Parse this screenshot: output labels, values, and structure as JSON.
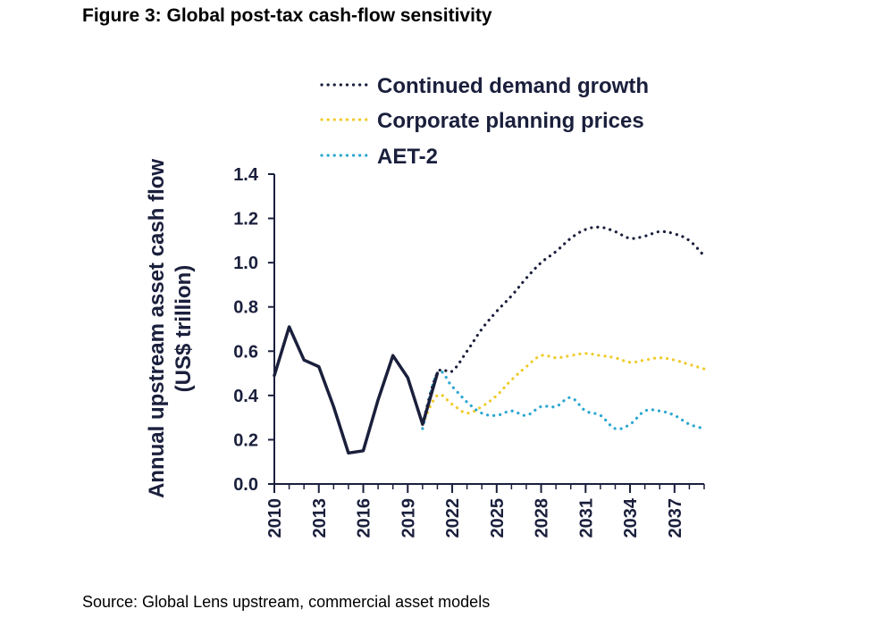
{
  "figure": {
    "title": "Figure 3: Global post-tax cash-flow sensitivity",
    "source": "Source: Global Lens upstream, commercial asset models"
  },
  "chart_data": {
    "type": "line",
    "title": "Figure 3: Global post-tax cash-flow sensitivity",
    "ylabel_line1": "Annual upstream asset cash flow",
    "ylabel_line2": "(US$ trillion)",
    "xlabel": "",
    "ylim": [
      0,
      1.4
    ],
    "xlim": [
      2010,
      2039
    ],
    "y_ticks": [
      "0.0",
      "0.2",
      "0.4",
      "0.6",
      "0.8",
      "1.0",
      "1.2",
      "1.4"
    ],
    "x_ticks": [
      "2010",
      "2013",
      "2016",
      "2019",
      "2022",
      "2025",
      "2028",
      "2031",
      "2034",
      "2037"
    ],
    "legend_position": "top",
    "grid": false,
    "historical": {
      "name": "",
      "color": "#1a1f3c",
      "x": [
        2010,
        2011,
        2012,
        2013,
        2014,
        2015,
        2016,
        2017,
        2018,
        2019,
        2020,
        2021
      ],
      "y": [
        0.49,
        0.71,
        0.56,
        0.53,
        0.35,
        0.14,
        0.15,
        0.38,
        0.58,
        0.48,
        0.27,
        0.5
      ]
    },
    "series": [
      {
        "name": "Continued demand growth",
        "color": "#1a1f3c",
        "style": "dotted",
        "x": [
          2020,
          2021,
          2022,
          2023,
          2024,
          2025,
          2026,
          2027,
          2028,
          2029,
          2030,
          2031,
          2032,
          2033,
          2034,
          2035,
          2036,
          2037,
          2038,
          2039
        ],
        "y": [
          0.27,
          0.5,
          0.51,
          0.6,
          0.7,
          0.78,
          0.85,
          0.93,
          1.0,
          1.05,
          1.11,
          1.15,
          1.16,
          1.14,
          1.11,
          1.12,
          1.14,
          1.13,
          1.1,
          1.03
        ]
      },
      {
        "name": "Corporate planning prices",
        "color": "#f0cb2a",
        "style": "dotted",
        "x": [
          2020,
          2021,
          2022,
          2023,
          2024,
          2025,
          2026,
          2027,
          2028,
          2029,
          2030,
          2031,
          2032,
          2033,
          2034,
          2035,
          2036,
          2037,
          2038,
          2039
        ],
        "y": [
          0.27,
          0.4,
          0.36,
          0.32,
          0.35,
          0.4,
          0.47,
          0.53,
          0.58,
          0.57,
          0.58,
          0.59,
          0.58,
          0.57,
          0.55,
          0.56,
          0.57,
          0.56,
          0.54,
          0.52
        ]
      },
      {
        "name": "AET-2",
        "color": "#2ba7d1",
        "style": "dotted",
        "x": [
          2020,
          2021,
          2022,
          2023,
          2024,
          2025,
          2026,
          2027,
          2028,
          2029,
          2030,
          2031,
          2032,
          2033,
          2034,
          2035,
          2036,
          2037,
          2038,
          2039
        ],
        "y": [
          0.25,
          0.5,
          0.44,
          0.37,
          0.32,
          0.31,
          0.33,
          0.31,
          0.35,
          0.35,
          0.39,
          0.33,
          0.31,
          0.25,
          0.27,
          0.33,
          0.33,
          0.31,
          0.27,
          0.25
        ]
      }
    ]
  }
}
